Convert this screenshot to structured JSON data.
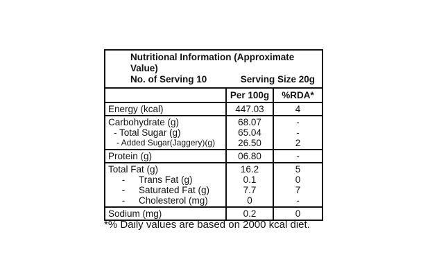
{
  "header": {
    "title": "Nutritional Information (Approximate Value)",
    "servings": "No. of Serving 10",
    "serving_size": "Serving Size 20g"
  },
  "columns": {
    "per100": "Per 100g",
    "rda": "%RDA*"
  },
  "rows": {
    "energy": {
      "label": "Energy (kcal)",
      "per100": "447.03",
      "rda": "4"
    },
    "carb": {
      "label": "Carbohydrate (g)",
      "per100": "68.07",
      "rda": "-"
    },
    "sugar": {
      "label": "- Total Sugar (g)",
      "per100": "65.04",
      "rda": "-"
    },
    "added": {
      "label": "- Added Sugar(Jaggery)(g)",
      "per100": "26.50",
      "rda": "2"
    },
    "protein": {
      "label": "Protein (g)",
      "per100": "06.80",
      "rda": "-"
    },
    "fat": {
      "label": "Total Fat (g)",
      "per100": "16.2",
      "rda": "5"
    },
    "trans": {
      "dash": "-",
      "label": "Trans Fat (g)",
      "per100": "0.1",
      "rda": "0"
    },
    "sat": {
      "dash": "-",
      "label": "Saturated Fat (g)",
      "per100": "7.7",
      "rda": "7"
    },
    "chol": {
      "dash": "-",
      "label": "Cholesterol (mg)",
      "per100": "0",
      "rda": "-"
    },
    "sodium": {
      "label": "Sodium (mg)",
      "per100": "0.2",
      "rda": "0"
    }
  },
  "footnote": "*% Daily values are based on 2000 kcal diet."
}
